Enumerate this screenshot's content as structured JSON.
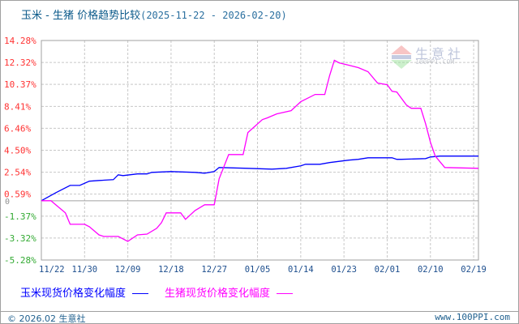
{
  "title": {
    "main": "玉米 - 生猪 价格趋势比较",
    "range": "(2025-11-22 - 2026-02-20)"
  },
  "watermark": {
    "text": "生意社",
    "url": "100PPI.COM"
  },
  "footer": {
    "copyright": "© 2026.02 生意社",
    "site": "www.100PPI.com"
  },
  "chart_data": {
    "type": "line",
    "title": "玉米 - 生猪 价格趋势比较",
    "xlim": [
      "2025-11-21",
      "2026-02-20"
    ],
    "ylim": [
      -5.28,
      14.28
    ],
    "grid": true,
    "legend": "bottom",
    "x_ticks": [
      {
        "date": "2025-11-21",
        "label": "11/22"
      },
      {
        "date": "2025-11-30",
        "label": "11/30"
      },
      {
        "date": "2025-12-09",
        "label": "12/09"
      },
      {
        "date": "2025-12-18",
        "label": "12/18"
      },
      {
        "date": "2025-12-27",
        "label": "12/27"
      },
      {
        "date": "2026-01-05",
        "label": "01/05"
      },
      {
        "date": "2026-01-14",
        "label": "01/14"
      },
      {
        "date": "2026-01-23",
        "label": "01/23"
      },
      {
        "date": "2026-02-01",
        "label": "02/01"
      },
      {
        "date": "2026-02-10",
        "label": "02/10"
      },
      {
        "date": "2026-02-19",
        "label": "02/19"
      }
    ],
    "y_ticks": [
      14.28,
      12.32,
      10.37,
      8.41,
      6.46,
      4.5,
      2.54,
      0.59,
      -1.37,
      -3.32,
      -5.28
    ],
    "y_tick_labels": [
      "14.28%",
      "12.32%",
      "10.37%",
      "8.41%",
      "6.46%",
      "4.50%",
      "2.54%",
      "0.59%",
      "-1.37%",
      "-3.32%",
      "-5.28%"
    ],
    "zero_label": "0",
    "colors": {
      "positive_tick": "#ff3333",
      "negative_tick": "#33aa33",
      "grid": "#c8c8c8",
      "axis": "#a0a0a0"
    },
    "series": [
      {
        "name": "玉米现货价格变化幅度",
        "color": "#0000ff",
        "points": [
          [
            "2025-11-21",
            0
          ],
          [
            "2025-11-24",
            0.72
          ],
          [
            "2025-11-27",
            1.37
          ],
          [
            "2025-11-29",
            1.37
          ],
          [
            "2025-12-01",
            1.74
          ],
          [
            "2025-12-03",
            1.81
          ],
          [
            "2025-12-06",
            1.88
          ],
          [
            "2025-12-07",
            2.31
          ],
          [
            "2025-12-08",
            2.24
          ],
          [
            "2025-12-11",
            2.39
          ],
          [
            "2025-12-13",
            2.39
          ],
          [
            "2025-12-14",
            2.53
          ],
          [
            "2025-12-18",
            2.6
          ],
          [
            "2025-12-23",
            2.53
          ],
          [
            "2025-12-25",
            2.46
          ],
          [
            "2025-12-27",
            2.6
          ],
          [
            "2025-12-28",
            2.96
          ],
          [
            "2026-01-03",
            2.89
          ],
          [
            "2026-01-08",
            2.82
          ],
          [
            "2026-01-11",
            2.89
          ],
          [
            "2026-01-14",
            3.11
          ],
          [
            "2026-01-15",
            3.25
          ],
          [
            "2026-01-18",
            3.25
          ],
          [
            "2026-01-20",
            3.4
          ],
          [
            "2026-01-24",
            3.62
          ],
          [
            "2026-01-26",
            3.69
          ],
          [
            "2026-01-28",
            3.83
          ],
          [
            "2026-02-02",
            3.83
          ],
          [
            "2026-02-03",
            3.69
          ],
          [
            "2026-02-04",
            3.69
          ],
          [
            "2026-02-09",
            3.76
          ],
          [
            "2026-02-10",
            3.9
          ],
          [
            "2026-02-12",
            3.98
          ],
          [
            "2026-02-20",
            3.98
          ]
        ]
      },
      {
        "name": "生猪现货价格变化幅度",
        "color": "#ff00ff",
        "points": [
          [
            "2025-11-21",
            0
          ],
          [
            "2025-11-23",
            0
          ],
          [
            "2025-11-26",
            -1.08
          ],
          [
            "2025-11-27",
            -2.1
          ],
          [
            "2025-11-30",
            -2.1
          ],
          [
            "2025-12-01",
            -2.31
          ],
          [
            "2025-12-03",
            -3.04
          ],
          [
            "2025-12-04",
            -3.18
          ],
          [
            "2025-12-07",
            -3.18
          ],
          [
            "2025-12-09",
            -3.62
          ],
          [
            "2025-12-11",
            -3.04
          ],
          [
            "2025-12-13",
            -2.97
          ],
          [
            "2025-12-15",
            -2.46
          ],
          [
            "2025-12-16",
            -1.95
          ],
          [
            "2025-12-17",
            -1.08
          ],
          [
            "2025-12-20",
            -1.08
          ],
          [
            "2025-12-21",
            -1.66
          ],
          [
            "2025-12-23",
            -0.87
          ],
          [
            "2025-12-25",
            -0.36
          ],
          [
            "2025-12-27",
            -0.36
          ],
          [
            "2025-12-28",
            1.95
          ],
          [
            "2025-12-30",
            4.12
          ],
          [
            "2026-01-02",
            4.12
          ],
          [
            "2026-01-03",
            6.08
          ],
          [
            "2026-01-06",
            7.23
          ],
          [
            "2026-01-07",
            7.38
          ],
          [
            "2026-01-09",
            7.74
          ],
          [
            "2026-01-12",
            8.03
          ],
          [
            "2026-01-14",
            8.82
          ],
          [
            "2026-01-17",
            9.47
          ],
          [
            "2026-01-19",
            9.47
          ],
          [
            "2026-01-20",
            11.14
          ],
          [
            "2026-01-21",
            12.51
          ],
          [
            "2026-01-22",
            12.29
          ],
          [
            "2026-01-24",
            12.08
          ],
          [
            "2026-01-26",
            11.86
          ],
          [
            "2026-01-28",
            11.5
          ],
          [
            "2026-01-30",
            10.49
          ],
          [
            "2026-02-01",
            10.34
          ],
          [
            "2026-02-02",
            9.76
          ],
          [
            "2026-02-03",
            9.69
          ],
          [
            "2026-02-05",
            8.53
          ],
          [
            "2026-02-06",
            8.24
          ],
          [
            "2026-02-08",
            8.24
          ],
          [
            "2026-02-09",
            6.87
          ],
          [
            "2026-02-10",
            5.21
          ],
          [
            "2026-02-11",
            3.98
          ],
          [
            "2026-02-13",
            2.96
          ],
          [
            "2026-02-20",
            2.89
          ]
        ]
      }
    ]
  }
}
